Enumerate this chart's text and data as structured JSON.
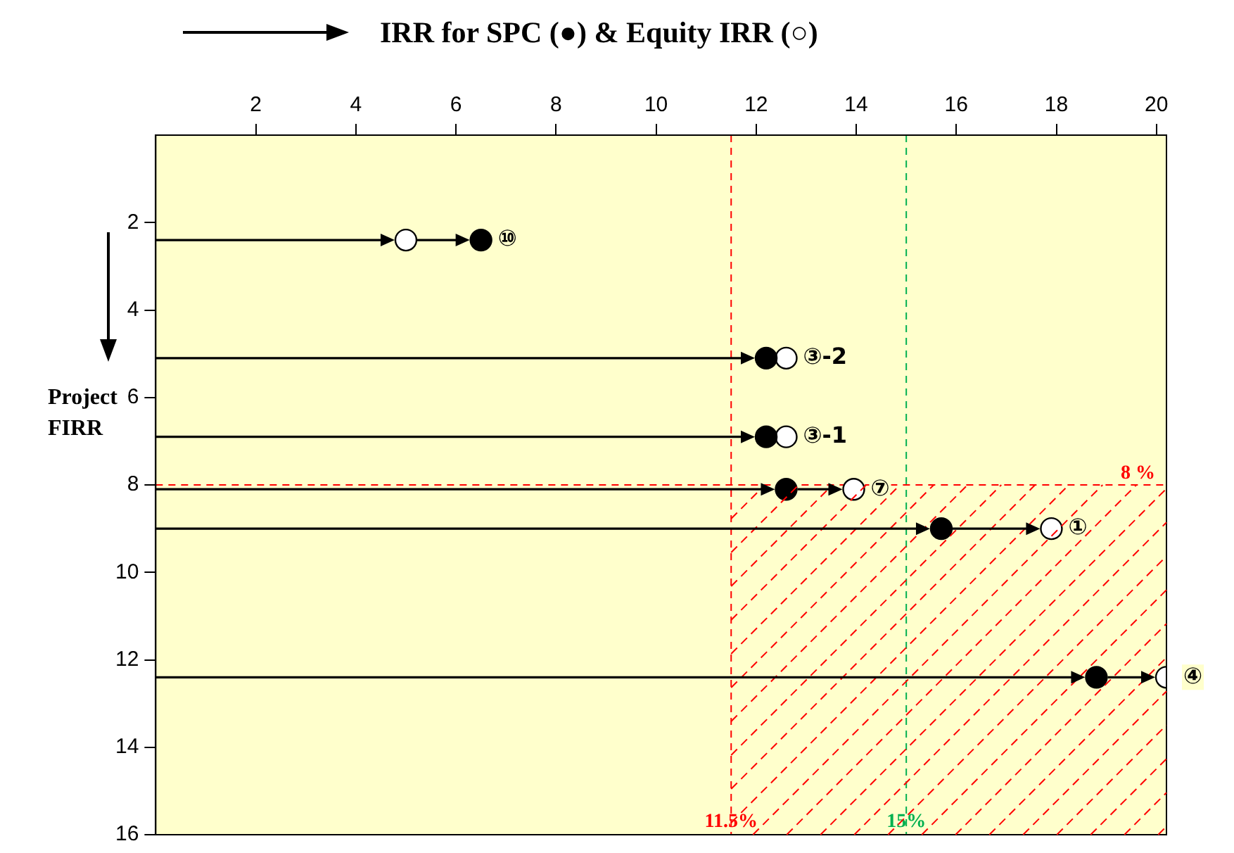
{
  "chart_data": {
    "type": "scatter",
    "title": "IRR for SPC (●) & Equity IRR (○)",
    "ylabel": "Project FIRR",
    "xlim": [
      0,
      20.2
    ],
    "xticks": [
      2,
      4,
      6,
      8,
      10,
      12,
      14,
      16,
      18,
      20
    ],
    "ylim": [
      16,
      0
    ],
    "yticks": [
      2,
      4,
      6,
      8,
      10,
      12,
      14,
      16
    ],
    "grid": false,
    "legend": false,
    "series": [
      {
        "type": "scatter",
        "color": "#000000",
        "marker": "circle",
        "x": [
          6.5,
          12.2,
          12.2,
          12.6,
          15.7,
          18.8
        ],
        "values": [
          2.4,
          5.1,
          6.9,
          8.1,
          9.0,
          12.4
        ]
      },
      {
        "type": "scatter",
        "color": "#ffffff",
        "marker": "circle",
        "x": [
          5.0,
          12.6,
          12.6,
          13.95,
          17.9,
          20.2
        ],
        "values": [
          2.4,
          5.1,
          6.9,
          8.1,
          9.0,
          12.4
        ]
      }
    ],
    "ref_lines": [
      {
        "axis": "x",
        "value": 11.5,
        "label": "11.5%",
        "color": "#ff0000",
        "line_style": "dashed"
      },
      {
        "axis": "x",
        "value": 15,
        "label": "15%",
        "color": "#00b050",
        "line_style": "dashed"
      },
      {
        "axis": "y",
        "value": 8,
        "label": "8 %",
        "color": "#ff0000",
        "line_style": "dashed"
      }
    ],
    "annotations": [
      {
        "text": "⑩",
        "x": 6.5,
        "y": 2.4
      },
      {
        "text": "③-2",
        "x": 12.6,
        "y": 5.1
      },
      {
        "text": "③-1",
        "x": 12.6,
        "y": 6.9
      },
      {
        "text": "⑦",
        "x": 13.95,
        "y": 8.1
      },
      {
        "text": "①",
        "x": 17.9,
        "y": 9.0
      },
      {
        "text": "④",
        "x": 20.2,
        "y": 12.4
      }
    ]
  }
}
